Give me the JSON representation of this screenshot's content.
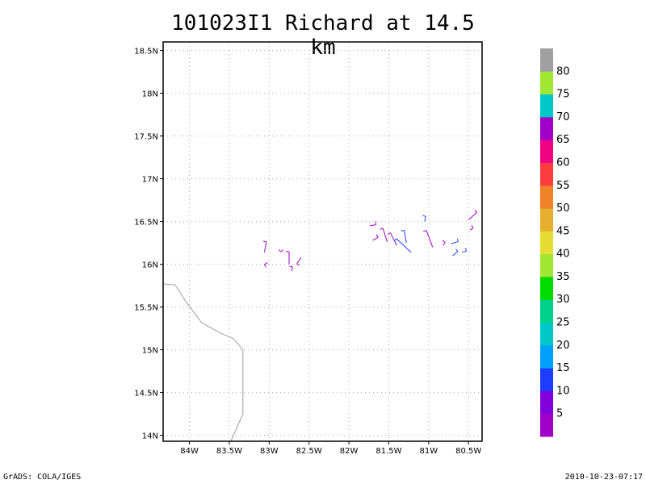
{
  "title": "101023I1 Richard at 14.5 km",
  "footer": {
    "left": "GrADS: COLA/IGES",
    "right": "2010-10-23-07:17"
  },
  "map": {
    "lon_ticks": [
      {
        "value": -84.0,
        "label": "84W"
      },
      {
        "value": -83.5,
        "label": "83.5W"
      },
      {
        "value": -83.0,
        "label": "83W"
      },
      {
        "value": -82.5,
        "label": "82.5W"
      },
      {
        "value": -82.0,
        "label": "82W"
      },
      {
        "value": -81.5,
        "label": "81.5W"
      },
      {
        "value": -81.0,
        "label": "81W"
      },
      {
        "value": -80.5,
        "label": "80.5W"
      }
    ],
    "lat_ticks": [
      {
        "value": 14.0,
        "label": "14N"
      },
      {
        "value": 14.5,
        "label": "14.5N"
      },
      {
        "value": 15.0,
        "label": "15N"
      },
      {
        "value": 15.5,
        "label": "15.5N"
      },
      {
        "value": 16.0,
        "label": "16N"
      },
      {
        "value": 16.5,
        "label": "16.5N"
      },
      {
        "value": 17.0,
        "label": "17N"
      },
      {
        "value": 17.5,
        "label": "17.5N"
      },
      {
        "value": 18.0,
        "label": "18N"
      },
      {
        "value": 18.5,
        "label": "18.5N"
      }
    ],
    "lon_range": [
      -84.33,
      -80.33
    ],
    "lat_range": [
      13.93,
      18.6
    ],
    "coastline": [
      [
        -84.33,
        15.77
      ],
      [
        -84.18,
        15.76
      ],
      [
        -84.05,
        15.57
      ],
      [
        -83.85,
        15.32
      ],
      [
        -83.62,
        15.2
      ],
      [
        -83.45,
        15.13
      ],
      [
        -83.33,
        15.0
      ],
      [
        -83.33,
        14.25
      ],
      [
        -83.48,
        13.93
      ]
    ],
    "coastline_color": "#a0a0a0"
  },
  "colorbar": {
    "labels": [
      "5",
      "10",
      "15",
      "20",
      "25",
      "30",
      "35",
      "40",
      "45",
      "50",
      "55",
      "60",
      "65",
      "70",
      "75",
      "80"
    ],
    "colors": [
      "#a000c8",
      "#8200dc",
      "#1e3cff",
      "#00a0ff",
      "#00c8c8",
      "#00d28c",
      "#00dc00",
      "#a0e632",
      "#e6dc32",
      "#e6af2d",
      "#f08228",
      "#fa3c3c",
      "#f00082",
      "#a000c8",
      "#00c8c8",
      "#a0e632",
      "#a0a0a0"
    ]
  },
  "wind_barbs": [
    {
      "lon": -83.06,
      "lat": 16.14,
      "u": 2.0,
      "v": 10.0,
      "color": "#a000c8"
    },
    {
      "lon": -83.02,
      "lat": 16.02,
      "u": -3.0,
      "v": -2.0,
      "color": "#a000c8"
    },
    {
      "lon": -82.88,
      "lat": 16.17,
      "u": 2.0,
      "v": -2.0,
      "color": "#a000c8"
    },
    {
      "lon": -82.75,
      "lat": 16.0,
      "u": 0.0,
      "v": 12.0,
      "color": "#a000c8"
    },
    {
      "lon": -82.72,
      "lat": 15.92,
      "u": 1.0,
      "v": 4.0,
      "color": "#a000c8"
    },
    {
      "lon": -82.6,
      "lat": 16.08,
      "u": -4.0,
      "v": -6.0,
      "color": "#a000c8"
    },
    {
      "lon": -81.74,
      "lat": 16.45,
      "u": 6.0,
      "v": 1.0,
      "color": "#a000c8"
    },
    {
      "lon": -81.7,
      "lat": 16.28,
      "u": 5.0,
      "v": 3.0,
      "color": "#a000c8"
    },
    {
      "lon": -81.52,
      "lat": 16.26,
      "u": -4.0,
      "v": 13.0,
      "color": "#a000c8"
    },
    {
      "lon": -81.4,
      "lat": 16.22,
      "u": -6.0,
      "v": 12.0,
      "color": "#a000c8"
    },
    {
      "lon": -81.28,
      "lat": 16.25,
      "u": -2.0,
      "v": 12.0,
      "color": "#1e3cff"
    },
    {
      "lon": -81.22,
      "lat": 16.14,
      "u": -14.0,
      "v": 13.0,
      "color": "#1e3cff"
    },
    {
      "lon": -81.05,
      "lat": 16.5,
      "u": 1.0,
      "v": 5.0,
      "color": "#1e3cff"
    },
    {
      "lon": -80.95,
      "lat": 16.2,
      "u": -6.0,
      "v": 16.0,
      "color": "#a000c8"
    },
    {
      "lon": -80.82,
      "lat": 16.22,
      "u": 2.0,
      "v": 3.0,
      "color": "#a000c8"
    },
    {
      "lon": -80.72,
      "lat": 16.24,
      "u": 7.0,
      "v": 2.0,
      "color": "#1e3cff"
    },
    {
      "lon": -80.7,
      "lat": 16.1,
      "u": 5.0,
      "v": 4.0,
      "color": "#1e3cff"
    },
    {
      "lon": -80.58,
      "lat": 16.14,
      "u": 4.0,
      "v": 1.0,
      "color": "#1e3cff"
    },
    {
      "lon": -80.5,
      "lat": 16.52,
      "u": 8.0,
      "v": 7.0,
      "color": "#a000c8"
    },
    {
      "lon": -80.48,
      "lat": 16.4,
      "u": 3.0,
      "v": 2.0,
      "color": "#a000c8"
    }
  ]
}
